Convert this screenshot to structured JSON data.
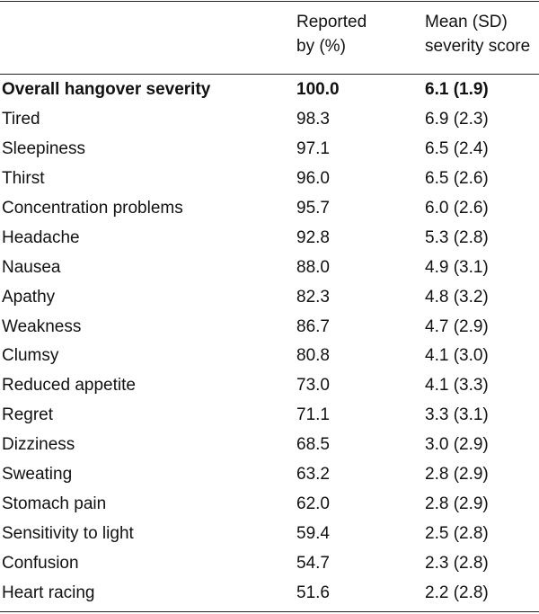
{
  "table": {
    "header": [
      [
        "Reported",
        "by (%)"
      ],
      [
        "Mean (SD)",
        "severity score"
      ]
    ],
    "rows": [
      [
        "Overall hangover severity",
        "100.0",
        "6.1 (1.9)"
      ],
      [
        "Tired",
        "98.3",
        "6.9 (2.3)"
      ],
      [
        "Sleepiness",
        "97.1",
        "6.5 (2.4)"
      ],
      [
        "Thirst",
        "96.0",
        "6.5 (2.6)"
      ],
      [
        "Concentration problems",
        "95.7",
        "6.0 (2.6)"
      ],
      [
        "Headache",
        "92.8",
        "5.3 (2.8)"
      ],
      [
        "Nausea",
        "88.0",
        "4.9 (3.1)"
      ],
      [
        "Apathy",
        "82.3",
        "4.8 (3.2)"
      ],
      [
        "Weakness",
        "86.7",
        "4.7 (2.9)"
      ],
      [
        "Clumsy",
        "80.8",
        "4.1 (3.0)"
      ],
      [
        "Reduced appetite",
        "73.0",
        "4.1 (3.3)"
      ],
      [
        "Regret",
        "71.1",
        "3.3 (3.1)"
      ],
      [
        "Dizziness",
        "68.5",
        "3.0 (2.9)"
      ],
      [
        "Sweating",
        "63.2",
        "2.8 (2.9)"
      ],
      [
        "Stomach pain",
        "62.0",
        "2.8 (2.9)"
      ],
      [
        "Sensitivity to light",
        "59.4",
        "2.5 (2.8)"
      ],
      [
        "Confusion",
        "54.7",
        "2.3 (2.8)"
      ],
      [
        "Heart racing",
        "51.6",
        "2.2 (2.8)"
      ]
    ]
  }
}
